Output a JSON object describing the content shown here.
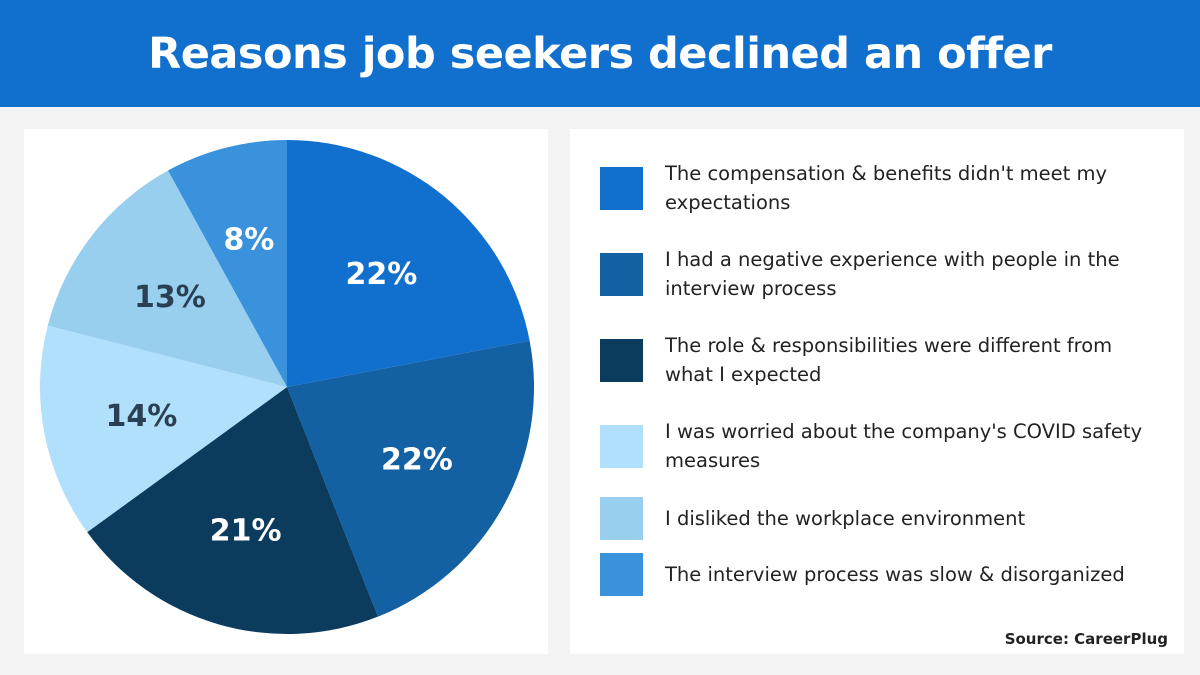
{
  "title": "Reasons job seekers declined an offer",
  "source": "Source: CareerPlug",
  "chart_data": {
    "type": "pie",
    "title": "Reasons job seekers declined an offer",
    "start": "top",
    "direction": "clockwise",
    "legend_position": "right",
    "slices": [
      {
        "label": "The compensation & benefits didn't meet my expectations",
        "value": 22,
        "data_label": "22%",
        "color": "#1170ce",
        "label_color": "#ffffff"
      },
      {
        "label": "I had a negative experience with people in the interview process",
        "value": 22,
        "data_label": "22%",
        "color": "#1360a3",
        "label_color": "#ffffff"
      },
      {
        "label": "The role & responsibilities were different from what I expected",
        "value": 21,
        "data_label": "21%",
        "color": "#0b3c5d",
        "label_color": "#ffffff"
      },
      {
        "label": "I was worried about the company's COVID safety measures",
        "value": 14,
        "data_label": "14%",
        "color": "#b0e0fc",
        "label_color": "#2b3f52"
      },
      {
        "label": "I disliked the workplace environment",
        "value": 13,
        "data_label": "13%",
        "color": "#99cfee",
        "label_color": "#2b3f52"
      },
      {
        "label": "The interview process was slow & disorganized",
        "value": 8,
        "data_label": "8%",
        "color": "#3a91dc",
        "label_color": "#ffffff"
      }
    ]
  }
}
